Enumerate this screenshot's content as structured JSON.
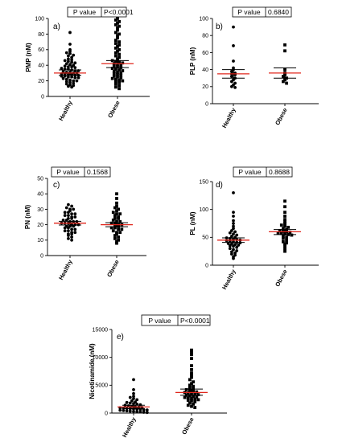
{
  "chart_data": [
    {
      "type": "scatter",
      "panel_label": "a)",
      "ylabel": "PMP (nM)",
      "categories": [
        "Healthy",
        "Obese"
      ],
      "ylim": [
        0,
        100
      ],
      "yticks": [
        0,
        20,
        40,
        60,
        80,
        100
      ],
      "p_value_label": "P value",
      "p_value": "P<0.0001",
      "colors": {
        "median": "#e0261c",
        "bar": "#000000",
        "point": "#000000"
      },
      "series": [
        {
          "name": "Healthy",
          "marker": "circle",
          "median": 30,
          "ci": [
            27,
            34
          ],
          "values": [
            82,
            67,
            60,
            58,
            56,
            55,
            53,
            52,
            50,
            48,
            47,
            46,
            45,
            44,
            43,
            42,
            41,
            40,
            39,
            38,
            38,
            37,
            36,
            35,
            35,
            34,
            33,
            33,
            32,
            31,
            31,
            30,
            30,
            29,
            29,
            28,
            28,
            27,
            27,
            26,
            26,
            25,
            25,
            24,
            24,
            23,
            22,
            21,
            20,
            20,
            19,
            18,
            17,
            16,
            15,
            14,
            13,
            12
          ]
        },
        {
          "name": "Obese",
          "marker": "square",
          "median": 42,
          "ci": [
            37,
            46
          ],
          "values": [
            100,
            98,
            96,
            94,
            92,
            90,
            88,
            85,
            82,
            80,
            78,
            75,
            72,
            70,
            68,
            66,
            64,
            62,
            60,
            58,
            56,
            54,
            52,
            50,
            48,
            46,
            45,
            44,
            43,
            42,
            41,
            40,
            39,
            38,
            37,
            36,
            35,
            34,
            33,
            32,
            31,
            30,
            29,
            28,
            27,
            26,
            25,
            24,
            23,
            22,
            21,
            20,
            19,
            18,
            16,
            14,
            12,
            10
          ]
        }
      ]
    },
    {
      "type": "scatter",
      "panel_label": "b)",
      "ylabel": "PLP (nM)",
      "categories": [
        "Healthy",
        "Obese"
      ],
      "ylim": [
        0,
        100
      ],
      "yticks": [
        0,
        20,
        40,
        60,
        80,
        100
      ],
      "p_value_label": "P value",
      "p_value": "0.6840",
      "colors": {
        "median": "#e0261c",
        "bar": "#000000",
        "point": "#000000"
      },
      "series": [
        {
          "name": "Healthy",
          "marker": "circle",
          "median": 35,
          "ci": [
            30,
            40
          ],
          "values": [
            90,
            68,
            50,
            42,
            40,
            38,
            36,
            35,
            34,
            32,
            30,
            28,
            26,
            24,
            22,
            20,
            19
          ]
        },
        {
          "name": "Obese",
          "marker": "square",
          "median": 36,
          "ci": [
            30,
            42
          ],
          "values": [
            69,
            62,
            40,
            36,
            34,
            32,
            30,
            28,
            26,
            24
          ]
        }
      ]
    },
    {
      "type": "scatter",
      "panel_label": "c)",
      "ylabel": "PN (nM)",
      "categories": [
        "Healthy",
        "Obese"
      ],
      "ylim": [
        0,
        50
      ],
      "yticks": [
        0,
        10,
        20,
        30,
        40,
        50
      ],
      "p_value_label": "P value",
      "p_value": "0.1568",
      "colors": {
        "median": "#e0261c",
        "bar": "#000000",
        "point": "#000000"
      },
      "series": [
        {
          "name": "Healthy",
          "marker": "circle",
          "median": 21,
          "ci": [
            19.8,
            22.2
          ],
          "values": [
            33,
            32,
            31,
            30,
            30,
            29,
            28,
            28,
            27,
            27,
            26,
            26,
            25,
            25,
            24,
            24,
            23,
            23,
            22,
            22,
            22,
            21,
            21,
            21,
            20,
            20,
            20,
            19,
            19,
            19,
            18,
            18,
            17,
            17,
            16,
            16,
            15,
            15,
            14,
            14,
            13,
            12,
            11,
            10
          ]
        },
        {
          "name": "Obese",
          "marker": "square",
          "median": 20,
          "ci": [
            18.7,
            21.3
          ],
          "values": [
            40,
            37,
            34,
            32,
            31,
            30,
            29,
            28,
            27,
            27,
            26,
            25,
            24,
            24,
            23,
            22,
            22,
            21,
            21,
            20,
            20,
            19,
            19,
            18,
            18,
            17,
            17,
            16,
            15,
            15,
            14,
            13,
            12,
            11,
            10,
            9,
            8
          ]
        }
      ]
    },
    {
      "type": "scatter",
      "panel_label": "d)",
      "ylabel": "PL (nM)",
      "categories": [
        "Healthy",
        "Obese"
      ],
      "ylim": [
        0,
        150
      ],
      "yticks": [
        0,
        50,
        100,
        150
      ],
      "p_value_label": "P value",
      "p_value": "0.8688",
      "colors": {
        "median": "#e0261c",
        "bar": "#000000",
        "point": "#000000"
      },
      "series": [
        {
          "name": "Healthy",
          "marker": "circle",
          "median": 45,
          "ci": [
            41,
            49
          ],
          "values": [
            130,
            95,
            88,
            80,
            75,
            70,
            66,
            62,
            60,
            58,
            56,
            54,
            52,
            50,
            49,
            48,
            47,
            46,
            45,
            44,
            43,
            42,
            41,
            40,
            39,
            38,
            37,
            36,
            35,
            34,
            32,
            30,
            28,
            26,
            24,
            22,
            20,
            18,
            15,
            12
          ]
        },
        {
          "name": "Obese",
          "marker": "square",
          "median": 60,
          "ci": [
            55,
            64
          ],
          "values": [
            115,
            105,
            95,
            88,
            82,
            78,
            75,
            72,
            70,
            68,
            66,
            64,
            62,
            61,
            60,
            59,
            58,
            57,
            56,
            55,
            54,
            52,
            50,
            48,
            45,
            42,
            40,
            38,
            35,
            30,
            25
          ]
        }
      ]
    },
    {
      "type": "scatter",
      "panel_label": "e)",
      "ylabel": "Nicotinamide (nM)",
      "categories": [
        "Healthy",
        "Obese"
      ],
      "ylim": [
        0,
        15000
      ],
      "yticks": [
        0,
        5000,
        10000,
        15000
      ],
      "p_value_label": "P value",
      "p_value": "P<0.0001",
      "colors": {
        "median": "#e0261c",
        "bar": "#000000",
        "point": "#000000"
      },
      "series": [
        {
          "name": "Healthy",
          "marker": "circle",
          "median": 1100,
          "ci": [
            800,
            1400
          ],
          "values": [
            6000,
            4200,
            3500,
            3000,
            2800,
            2600,
            2400,
            2200,
            2000,
            1900,
            1800,
            1700,
            1600,
            1500,
            1400,
            1300,
            1200,
            1100,
            1050,
            1000,
            950,
            900,
            850,
            800,
            750,
            700,
            650,
            600,
            550,
            500,
            450,
            400,
            350,
            300,
            250,
            200,
            150,
            100
          ]
        },
        {
          "name": "Obese",
          "marker": "square",
          "median": 3700,
          "ci": [
            3200,
            4300
          ],
          "values": [
            11300,
            11000,
            10500,
            9800,
            8500,
            7800,
            7200,
            6800,
            6400,
            6000,
            5600,
            5300,
            5000,
            4800,
            4600,
            4400,
            4200,
            4000,
            3900,
            3800,
            3700,
            3600,
            3500,
            3400,
            3300,
            3200,
            3100,
            3000,
            2900,
            2800,
            2700,
            2600,
            2500,
            2400,
            2300,
            2200,
            2000,
            1800,
            1600,
            1400,
            1200,
            1000
          ]
        }
      ]
    }
  ]
}
